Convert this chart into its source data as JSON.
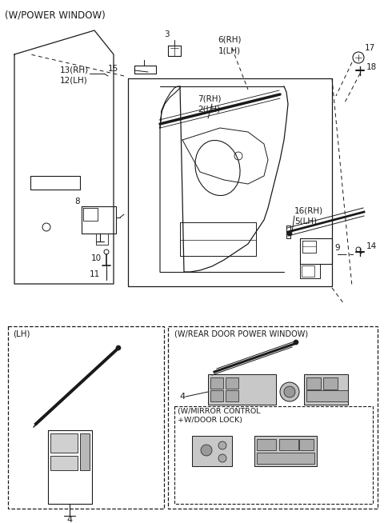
{
  "bg_color": "#ffffff",
  "line_color": "#1a1a1a",
  "fig_width": 4.8,
  "fig_height": 6.54,
  "dpi": 100,
  "title": "(W/POWER WINDOW)",
  "labels": {
    "lh_box": "(LH)",
    "rear_box": "(W/REAR DOOR POWER WINDOW)",
    "mirror_box": "(W/MIRROR CONTROL\n+W/DOOR LOCK)"
  }
}
